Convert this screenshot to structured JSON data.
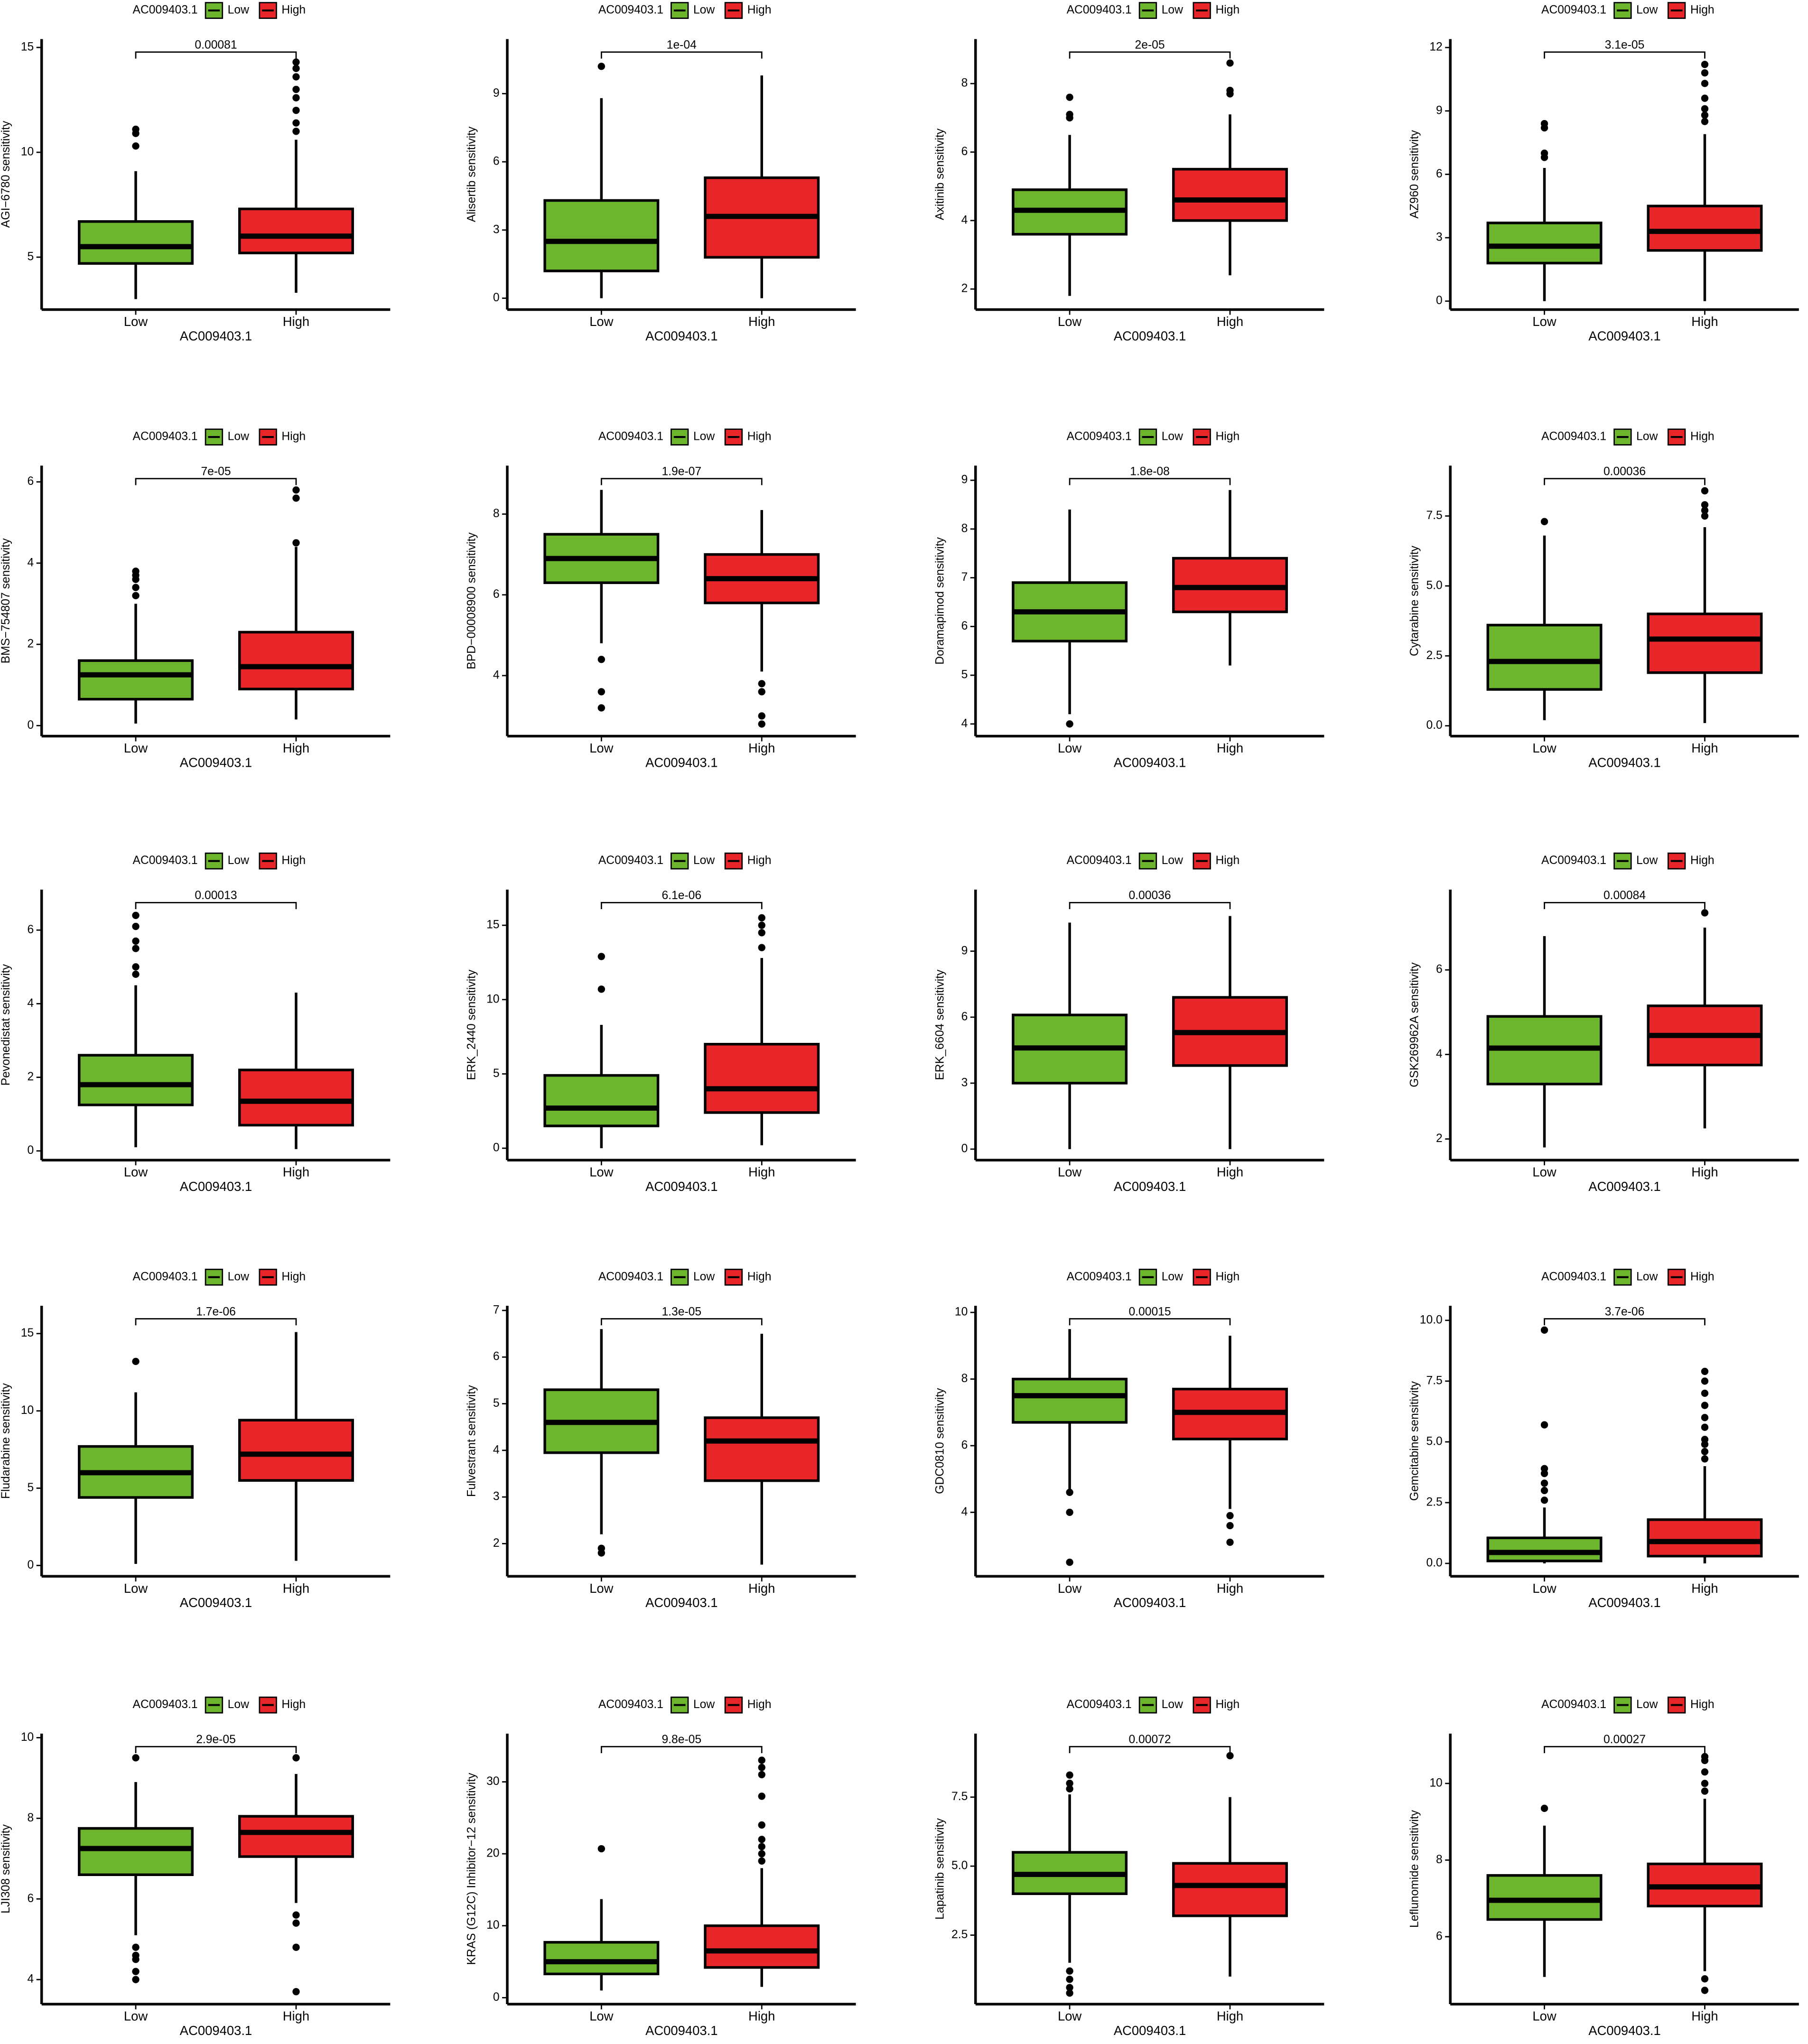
{
  "chart_data": [
    {
      "type": "box",
      "legend_title": "AC009403.1",
      "ylabel": "AGI−6780 sensitivity",
      "xlabel": "AC009403.1",
      "annotation": "0.00081",
      "categories": [
        "Low",
        "High"
      ],
      "ylim": [
        2.5,
        15.4
      ],
      "yticks": [
        5,
        10,
        15
      ],
      "series": [
        {
          "name": "Low",
          "color": "#6cb52d",
          "min": 3,
          "q1": 4.7,
          "median": 5.5,
          "q3": 6.7,
          "max": 9.1,
          "outliers": [
            10.3,
            10.9,
            11.1
          ]
        },
        {
          "name": "High",
          "color": "#e8262a",
          "min": 3.3,
          "q1": 5.2,
          "median": 6.0,
          "q3": 7.3,
          "max": 10.6,
          "outliers": [
            11,
            11.4,
            12,
            12.6,
            13,
            13.6,
            14,
            14.3
          ]
        }
      ]
    },
    {
      "type": "box",
      "legend_title": "AC009403.1",
      "ylabel": "Alisertib sensitivity",
      "xlabel": "AC009403.1",
      "annotation": "1e-04",
      "categories": [
        "Low",
        "High"
      ],
      "ylim": [
        -0.5,
        11.4
      ],
      "yticks": [
        0,
        3,
        6,
        9
      ],
      "series": [
        {
          "name": "Low",
          "color": "#6cb52d",
          "min": 0,
          "q1": 1.2,
          "median": 2.5,
          "q3": 4.3,
          "max": 8.8,
          "outliers": [
            10.2
          ]
        },
        {
          "name": "High",
          "color": "#e8262a",
          "min": 0,
          "q1": 1.8,
          "median": 3.6,
          "q3": 5.3,
          "max": 9.8,
          "outliers": []
        }
      ]
    },
    {
      "type": "box",
      "legend_title": "AC009403.1",
      "ylabel": "Axitinib sensitivity",
      "xlabel": "AC009403.1",
      "annotation": "2e-05",
      "categories": [
        "Low",
        "High"
      ],
      "ylim": [
        1.4,
        9.3
      ],
      "yticks": [
        2,
        4,
        6,
        8
      ],
      "series": [
        {
          "name": "Low",
          "color": "#6cb52d",
          "min": 1.8,
          "q1": 3.6,
          "median": 4.3,
          "q3": 4.9,
          "max": 6.5,
          "outliers": [
            7.0,
            7.1,
            7.6
          ]
        },
        {
          "name": "High",
          "color": "#e8262a",
          "min": 2.4,
          "q1": 4.0,
          "median": 4.6,
          "q3": 5.5,
          "max": 7.1,
          "outliers": [
            7.7,
            7.8,
            8.6
          ]
        }
      ]
    },
    {
      "type": "box",
      "legend_title": "AC009403.1",
      "ylabel": "AZ960 sensitivity",
      "xlabel": "AC009403.1",
      "annotation": "3.1e-05",
      "categories": [
        "Low",
        "High"
      ],
      "ylim": [
        -0.4,
        12.4
      ],
      "yticks": [
        0,
        3,
        6,
        9,
        12
      ],
      "series": [
        {
          "name": "Low",
          "color": "#6cb52d",
          "min": 0,
          "q1": 1.8,
          "median": 2.6,
          "q3": 3.7,
          "max": 6.3,
          "outliers": [
            6.8,
            7,
            8.2,
            8.4
          ]
        },
        {
          "name": "High",
          "color": "#e8262a",
          "min": 0,
          "q1": 2.4,
          "median": 3.3,
          "q3": 4.5,
          "max": 7.9,
          "outliers": [
            8.5,
            8.8,
            9.1,
            9.6,
            10.3,
            10.8,
            11.2
          ]
        }
      ]
    },
    {
      "type": "box",
      "legend_title": "AC009403.1",
      "ylabel": "BMS−754807 sensitivity",
      "xlabel": "AC009403.1",
      "annotation": "7e-05",
      "categories": [
        "Low",
        "High"
      ],
      "ylim": [
        -0.26,
        6.4
      ],
      "yticks": [
        0,
        2,
        4,
        6
      ],
      "series": [
        {
          "name": "Low",
          "color": "#6cb52d",
          "min": 0.05,
          "q1": 0.65,
          "median": 1.25,
          "q3": 1.6,
          "max": 3.0,
          "outliers": [
            3.2,
            3.4,
            3.6,
            3.7,
            3.8
          ]
        },
        {
          "name": "High",
          "color": "#e8262a",
          "min": 0.15,
          "q1": 0.9,
          "median": 1.45,
          "q3": 2.3,
          "max": 4.4,
          "outliers": [
            4.5,
            5.6,
            5.8
          ]
        }
      ]
    },
    {
      "type": "box",
      "legend_title": "AC009403.1",
      "ylabel": "BPD−00008900 sensitivity",
      "xlabel": "AC009403.1",
      "annotation": "1.9e-07",
      "categories": [
        "Low",
        "High"
      ],
      "ylim": [
        2.5,
        9.2
      ],
      "yticks": [
        4,
        6,
        8
      ],
      "series": [
        {
          "name": "Low",
          "color": "#6cb52d",
          "min": 4.8,
          "q1": 6.3,
          "median": 6.9,
          "q3": 7.5,
          "max": 8.6,
          "outliers": [
            4.4,
            3.6,
            3.2
          ]
        },
        {
          "name": "High",
          "color": "#e8262a",
          "min": 4.1,
          "q1": 5.8,
          "median": 6.4,
          "q3": 7.0,
          "max": 8.1,
          "outliers": [
            3.8,
            3.6,
            3.0,
            2.8
          ]
        }
      ]
    },
    {
      "type": "box",
      "legend_title": "AC009403.1",
      "ylabel": "Doramapimod sensitivity",
      "xlabel": "AC009403.1",
      "annotation": "1.8e-08",
      "categories": [
        "Low",
        "High"
      ],
      "ylim": [
        3.75,
        9.3
      ],
      "yticks": [
        4,
        5,
        6,
        7,
        8,
        9
      ],
      "series": [
        {
          "name": "Low",
          "color": "#6cb52d",
          "min": 4.2,
          "q1": 5.7,
          "median": 6.3,
          "q3": 6.9,
          "max": 8.4,
          "outliers": [
            4.0
          ]
        },
        {
          "name": "High",
          "color": "#e8262a",
          "min": 5.2,
          "q1": 6.3,
          "median": 6.8,
          "q3": 7.4,
          "max": 8.8,
          "outliers": []
        }
      ]
    },
    {
      "type": "box",
      "legend_title": "AC009403.1",
      "ylabel": "Cytarabine sensitivity",
      "xlabel": "AC009403.1",
      "annotation": "0.00036",
      "categories": [
        "Low",
        "High"
      ],
      "ylim": [
        -0.37,
        9.3
      ],
      "yticks": [
        {
          "value": 0,
          "label": "0.0"
        },
        {
          "value": 2.5,
          "label": "2.5"
        },
        {
          "value": 5,
          "label": "5.0"
        },
        {
          "value": 7.5,
          "label": "7.5"
        }
      ],
      "series": [
        {
          "name": "Low",
          "color": "#6cb52d",
          "min": 0.2,
          "q1": 1.3,
          "median": 2.3,
          "q3": 3.6,
          "max": 6.8,
          "outliers": [
            7.3
          ]
        },
        {
          "name": "High",
          "color": "#e8262a",
          "min": 0.1,
          "q1": 1.9,
          "median": 3.1,
          "q3": 4.0,
          "max": 7.1,
          "outliers": [
            7.5,
            7.7,
            7.9,
            8.4
          ]
        }
      ]
    },
    {
      "type": "box",
      "legend_title": "AC009403.1",
      "ylabel": "Pevonedistat sensitivity",
      "xlabel": "AC009403.1",
      "annotation": "0.00013",
      "categories": [
        "Low",
        "High"
      ],
      "ylim": [
        -0.25,
        7.1
      ],
      "yticks": [
        0,
        2,
        4,
        6
      ],
      "series": [
        {
          "name": "Low",
          "color": "#6cb52d",
          "min": 0.1,
          "q1": 1.25,
          "median": 1.8,
          "q3": 2.6,
          "max": 4.5,
          "outliers": [
            4.8,
            5,
            5.5,
            5.7,
            6.1,
            6.4
          ]
        },
        {
          "name": "High",
          "color": "#e8262a",
          "min": 0.05,
          "q1": 0.7,
          "median": 1.35,
          "q3": 2.2,
          "max": 4.3,
          "outliers": []
        }
      ]
    },
    {
      "type": "box",
      "legend_title": "AC009403.1",
      "ylabel": "ERK_2440 sensitivity",
      "xlabel": "AC009403.1",
      "annotation": "6.1e-06",
      "categories": [
        "Low",
        "High"
      ],
      "ylim": [
        -0.8,
        17.4
      ],
      "yticks": [
        0,
        5,
        10,
        15
      ],
      "series": [
        {
          "name": "Low",
          "color": "#6cb52d",
          "min": 0,
          "q1": 1.5,
          "median": 2.7,
          "q3": 4.9,
          "max": 8.3,
          "outliers": [
            10.7,
            12.9
          ]
        },
        {
          "name": "High",
          "color": "#e8262a",
          "min": 0.2,
          "q1": 2.4,
          "median": 4.0,
          "q3": 7.0,
          "max": 12.8,
          "outliers": [
            13.5,
            14.5,
            15,
            15.5
          ]
        }
      ]
    },
    {
      "type": "box",
      "legend_title": "AC009403.1",
      "ylabel": "ERK_6604 sensitivity",
      "xlabel": "AC009403.1",
      "annotation": "0.00036",
      "categories": [
        "Low",
        "High"
      ],
      "ylim": [
        -0.5,
        11.8
      ],
      "yticks": [
        0,
        3,
        6,
        9
      ],
      "series": [
        {
          "name": "Low",
          "color": "#6cb52d",
          "min": 0,
          "q1": 3.0,
          "median": 4.6,
          "q3": 6.1,
          "max": 10.3,
          "outliers": []
        },
        {
          "name": "High",
          "color": "#e8262a",
          "min": 0,
          "q1": 3.8,
          "median": 5.3,
          "q3": 6.9,
          "max": 10.6,
          "outliers": []
        }
      ]
    },
    {
      "type": "box",
      "legend_title": "AC009403.1",
      "ylabel": "GSK269962A sensitivity",
      "xlabel": "AC009403.1",
      "annotation": "0.00084",
      "categories": [
        "Low",
        "High"
      ],
      "ylim": [
        1.5,
        7.9
      ],
      "yticks": [
        2,
        4,
        6
      ],
      "series": [
        {
          "name": "Low",
          "color": "#6cb52d",
          "min": 1.8,
          "q1": 3.3,
          "median": 4.15,
          "q3": 4.9,
          "max": 6.8,
          "outliers": []
        },
        {
          "name": "High",
          "color": "#e8262a",
          "min": 2.25,
          "q1": 3.75,
          "median": 4.45,
          "q3": 5.15,
          "max": 7.0,
          "outliers": [
            7.35
          ]
        }
      ]
    },
    {
      "type": "box",
      "legend_title": "AC009403.1",
      "ylabel": "Fludarabine sensitivity",
      "xlabel": "AC009403.1",
      "annotation": "1.7e-06",
      "categories": [
        "Low",
        "High"
      ],
      "ylim": [
        -0.7,
        16.8
      ],
      "yticks": [
        0,
        5,
        10,
        15
      ],
      "series": [
        {
          "name": "Low",
          "color": "#6cb52d",
          "min": 0.1,
          "q1": 4.4,
          "median": 6.0,
          "q3": 7.7,
          "max": 11.2,
          "outliers": [
            13.2
          ]
        },
        {
          "name": "High",
          "color": "#e8262a",
          "min": 0.3,
          "q1": 5.5,
          "median": 7.2,
          "q3": 9.4,
          "max": 15.1,
          "outliers": []
        }
      ]
    },
    {
      "type": "box",
      "legend_title": "AC009403.1",
      "ylabel": "Fulvestrant sensitivity",
      "xlabel": "AC009403.1",
      "annotation": "1.3e-05",
      "categories": [
        "Low",
        "High"
      ],
      "ylim": [
        1.3,
        7.1
      ],
      "yticks": [
        2,
        3,
        4,
        5,
        6,
        7
      ],
      "series": [
        {
          "name": "Low",
          "color": "#6cb52d",
          "min": 2.2,
          "q1": 3.95,
          "median": 4.6,
          "q3": 5.3,
          "max": 6.6,
          "outliers": [
            1.9,
            1.8
          ]
        },
        {
          "name": "High",
          "color": "#e8262a",
          "min": 1.55,
          "q1": 3.35,
          "median": 4.2,
          "q3": 4.7,
          "max": 6.5,
          "outliers": []
        }
      ]
    },
    {
      "type": "box",
      "legend_title": "AC009403.1",
      "ylabel": "GDC0810 sensitivity",
      "xlabel": "AC009403.1",
      "annotation": "0.00015",
      "categories": [
        "Low",
        "High"
      ],
      "ylim": [
        2.08,
        10.2
      ],
      "yticks": [
        4,
        6,
        8,
        10
      ],
      "series": [
        {
          "name": "Low",
          "color": "#6cb52d",
          "min": 4.7,
          "q1": 6.7,
          "median": 7.5,
          "q3": 8.0,
          "max": 9.5,
          "outliers": [
            4.6,
            4.0,
            2.5
          ]
        },
        {
          "name": "High",
          "color": "#e8262a",
          "min": 4.1,
          "q1": 6.2,
          "median": 7.0,
          "q3": 7.7,
          "max": 9.3,
          "outliers": [
            3.9,
            3.6,
            3.1
          ]
        }
      ]
    },
    {
      "type": "box",
      "legend_title": "AC009403.1",
      "ylabel": "Gemcitabine sensitivity",
      "xlabel": "AC009403.1",
      "annotation": "3.7e-06",
      "categories": [
        "Low",
        "High"
      ],
      "ylim": [
        -0.53,
        10.6
      ],
      "yticks": [
        {
          "value": 0,
          "label": "0.0"
        },
        {
          "value": 2.5,
          "label": "2.5"
        },
        {
          "value": 5,
          "label": "5.0"
        },
        {
          "value": 7.5,
          "label": "7.5"
        },
        {
          "value": 10,
          "label": "10.0"
        }
      ],
      "series": [
        {
          "name": "Low",
          "color": "#6cb52d",
          "min": 0,
          "q1": 0.1,
          "median": 0.45,
          "q3": 1.05,
          "max": 2.3,
          "outliers": [
            2.6,
            3,
            3.3,
            3.7,
            3.9,
            5.7,
            9.6
          ]
        },
        {
          "name": "High",
          "color": "#e8262a",
          "min": 0,
          "q1": 0.3,
          "median": 0.9,
          "q3": 1.8,
          "max": 4.0,
          "outliers": [
            4.3,
            4.6,
            4.9,
            5.1,
            5.6,
            6.0,
            6.5,
            7.0,
            7.5,
            7.9
          ]
        }
      ]
    },
    {
      "type": "box",
      "legend_title": "AC009403.1",
      "ylabel": "LJI308 sensitivity",
      "xlabel": "AC009403.1",
      "annotation": "2.9e-05",
      "categories": [
        "Low",
        "High"
      ],
      "ylim": [
        3.39,
        10.1
      ],
      "yticks": [
        4,
        6,
        8,
        10
      ],
      "series": [
        {
          "name": "Low",
          "color": "#6cb52d",
          "min": 5.1,
          "q1": 6.6,
          "median": 7.25,
          "q3": 7.75,
          "max": 8.9,
          "outliers": [
            9.5,
            4.8,
            4.6,
            4.5,
            4.2,
            4.0
          ]
        },
        {
          "name": "High",
          "color": "#e8262a",
          "min": 5.9,
          "q1": 7.05,
          "median": 7.65,
          "q3": 8.05,
          "max": 9.1,
          "outliers": [
            9.5,
            5.6,
            5.4,
            4.8,
            3.7
          ]
        }
      ]
    },
    {
      "type": "box",
      "legend_title": "AC009403.1",
      "ylabel": "KRAS (G12C) Inhibitor−12 sensitivity",
      "xlabel": "AC009403.1",
      "annotation": "9.8e-05",
      "categories": [
        "Low",
        "High"
      ],
      "ylim": [
        -0.9,
        36.7
      ],
      "yticks": [
        0,
        10,
        20,
        30
      ],
      "series": [
        {
          "name": "Low",
          "color": "#6cb52d",
          "min": 1,
          "q1": 3.3,
          "median": 5,
          "q3": 7.7,
          "max": 13.7,
          "outliers": [
            20.7
          ]
        },
        {
          "name": "High",
          "color": "#e8262a",
          "min": 1.5,
          "q1": 4.2,
          "median": 6.5,
          "q3": 10,
          "max": 18,
          "outliers": [
            19,
            20,
            21,
            22,
            24,
            28,
            31,
            32,
            33
          ]
        }
      ]
    },
    {
      "type": "box",
      "legend_title": "AC009403.1",
      "ylabel": "Lapatinib sensitivity",
      "xlabel": "AC009403.1",
      "annotation": "0.00072",
      "categories": [
        "Low",
        "High"
      ],
      "ylim": [
        0,
        9.8
      ],
      "yticks": [
        2.5,
        {
          "value": 5,
          "label": "5.0"
        },
        7.5
      ],
      "series": [
        {
          "name": "Low",
          "color": "#6cb52d",
          "min": 1.5,
          "q1": 4.0,
          "median": 4.7,
          "q3": 5.5,
          "max": 7.6,
          "outliers": [
            7.8,
            8.0,
            8.3,
            1.2,
            0.9,
            0.6,
            0.4
          ]
        },
        {
          "name": "High",
          "color": "#e8262a",
          "min": 1.0,
          "q1": 3.2,
          "median": 4.3,
          "q3": 5.1,
          "max": 7.5,
          "outliers": [
            9.0
          ]
        }
      ]
    },
    {
      "type": "box",
      "legend_title": "AC009403.1",
      "ylabel": "Leflunomide sensitivity",
      "xlabel": "AC009403.1",
      "annotation": "0.00027",
      "categories": [
        "Low",
        "High"
      ],
      "ylim": [
        4.24,
        11.3
      ],
      "yticks": [
        6,
        8,
        10
      ],
      "series": [
        {
          "name": "Low",
          "color": "#6cb52d",
          "min": 4.95,
          "q1": 6.45,
          "median": 6.95,
          "q3": 7.6,
          "max": 8.9,
          "outliers": [
            9.35
          ]
        },
        {
          "name": "High",
          "color": "#e8262a",
          "min": 5.1,
          "q1": 6.8,
          "median": 7.3,
          "q3": 7.9,
          "max": 9.6,
          "outliers": [
            9.8,
            10.0,
            10.3,
            10.6,
            10.7,
            4.9,
            4.6
          ]
        }
      ]
    }
  ]
}
